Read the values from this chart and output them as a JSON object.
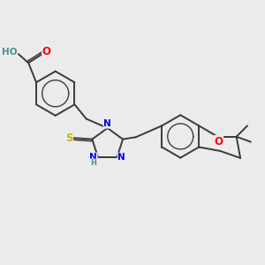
{
  "bg_color": "#ebebeb",
  "bond_color": "#3a3a3a",
  "bond_width": 1.4,
  "atom_colors": {
    "O": "#ff0000",
    "N": "#0000ff",
    "S": "#c8b400",
    "H_label": "#4a9090",
    "C": "#3a3a3a"
  },
  "font_size": 7.5,
  "fig_size": [
    3.0,
    3.0
  ],
  "dpi": 100
}
